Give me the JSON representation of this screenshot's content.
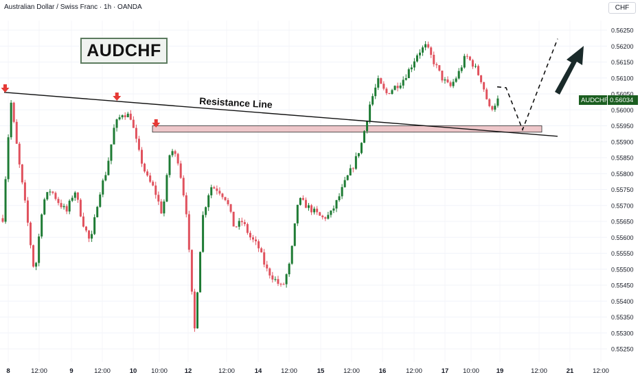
{
  "header": {
    "title": "Australian Dollar / Swiss Franc · 1h · OANDA",
    "currency_button": "CHF"
  },
  "symbol_label": "AUDCHF",
  "annotation": {
    "resistance_label": "Resistance Line"
  },
  "last_price": {
    "symbol": "AUDCHF",
    "value": "0.56034",
    "color": "#1b5e20"
  },
  "colors": {
    "up": "#1e7b34",
    "down": "#e0525e",
    "zone": "#e8b4b8",
    "accent_dark": "#1a2a2a",
    "marker": "#e53935"
  },
  "chart_data": {
    "type": "candlestick",
    "symbol": "AUDCHF",
    "timeframe": "1h",
    "source": "OANDA",
    "ylim": [
      0.5523,
      0.5628
    ],
    "y_ticks": [
      "0.56250",
      "0.56200",
      "0.56150",
      "0.56100",
      "0.56050",
      "0.56000",
      "0.55950",
      "0.55900",
      "0.55850",
      "0.55800",
      "0.55750",
      "0.55700",
      "0.55650",
      "0.55600",
      "0.55550",
      "0.55500",
      "0.55450",
      "0.55400",
      "0.55350",
      "0.55300",
      "0.55250"
    ],
    "x_ticks": [
      "8",
      "12:00",
      "9",
      "12:00",
      "10",
      "10:00",
      "12",
      "12:00",
      "14",
      "12:00",
      "15",
      "12:00",
      "16",
      "12:00",
      "17",
      "10:00",
      "19",
      "12:00",
      "21",
      "12:00"
    ],
    "last_close": 0.56034,
    "resistance_line": {
      "label": "Resistance Line",
      "start": 0.56055,
      "end": 0.5593
    },
    "support_zone": [
      0.5593,
      0.5595
    ],
    "path": [
      [
        0,
        0.5566
      ],
      [
        1,
        0.5603
      ],
      [
        2,
        0.5584
      ],
      [
        3,
        0.5567
      ],
      [
        4,
        0.5548
      ],
      [
        5,
        0.5571
      ],
      [
        6,
        0.5575
      ],
      [
        7,
        0.5571
      ],
      [
        8,
        0.5568
      ],
      [
        9,
        0.5575
      ],
      [
        10,
        0.5565
      ],
      [
        11,
        0.5558
      ],
      [
        12,
        0.5573
      ],
      [
        13,
        0.5581
      ],
      [
        14,
        0.5595
      ],
      [
        15,
        0.5599
      ],
      [
        16,
        0.5598
      ],
      [
        17,
        0.5587
      ],
      [
        18,
        0.5579
      ],
      [
        19,
        0.5575
      ],
      [
        20,
        0.5567
      ],
      [
        21,
        0.5588
      ],
      [
        22,
        0.5584
      ],
      [
        23,
        0.5568
      ],
      [
        24,
        0.553
      ],
      [
        25,
        0.5566
      ],
      [
        26,
        0.5576
      ],
      [
        27,
        0.5575
      ],
      [
        28,
        0.5572
      ],
      [
        29,
        0.5563
      ],
      [
        30,
        0.5565
      ],
      [
        31,
        0.556
      ],
      [
        32,
        0.5557
      ],
      [
        33,
        0.555
      ],
      [
        34,
        0.5547
      ],
      [
        35,
        0.5544
      ],
      [
        36,
        0.5552
      ],
      [
        37,
        0.5572
      ],
      [
        38,
        0.557
      ],
      [
        39,
        0.5568
      ],
      [
        40,
        0.5566
      ],
      [
        41,
        0.5567
      ],
      [
        42,
        0.5572
      ],
      [
        43,
        0.5578
      ],
      [
        44,
        0.5583
      ],
      [
        45,
        0.559
      ],
      [
        46,
        0.5602
      ],
      [
        47,
        0.5609
      ],
      [
        48,
        0.5605
      ],
      [
        49,
        0.5607
      ],
      [
        50,
        0.5609
      ],
      [
        51,
        0.5613
      ],
      [
        52,
        0.5618
      ],
      [
        53,
        0.562
      ],
      [
        54,
        0.5615
      ],
      [
        55,
        0.561
      ],
      [
        56,
        0.5607
      ],
      [
        57,
        0.5611
      ],
      [
        58,
        0.5617
      ],
      [
        59,
        0.5614
      ],
      [
        60,
        0.5609
      ],
      [
        61,
        0.56
      ],
      [
        62,
        0.5603
      ]
    ],
    "markers": [
      {
        "type": "down-arrow",
        "index": 0.3
      },
      {
        "type": "down-arrow",
        "index": 14.3
      },
      {
        "type": "down-arrow",
        "index": 19.2
      }
    ],
    "projection": [
      0.5607,
      0.5594,
      0.5621
    ]
  }
}
